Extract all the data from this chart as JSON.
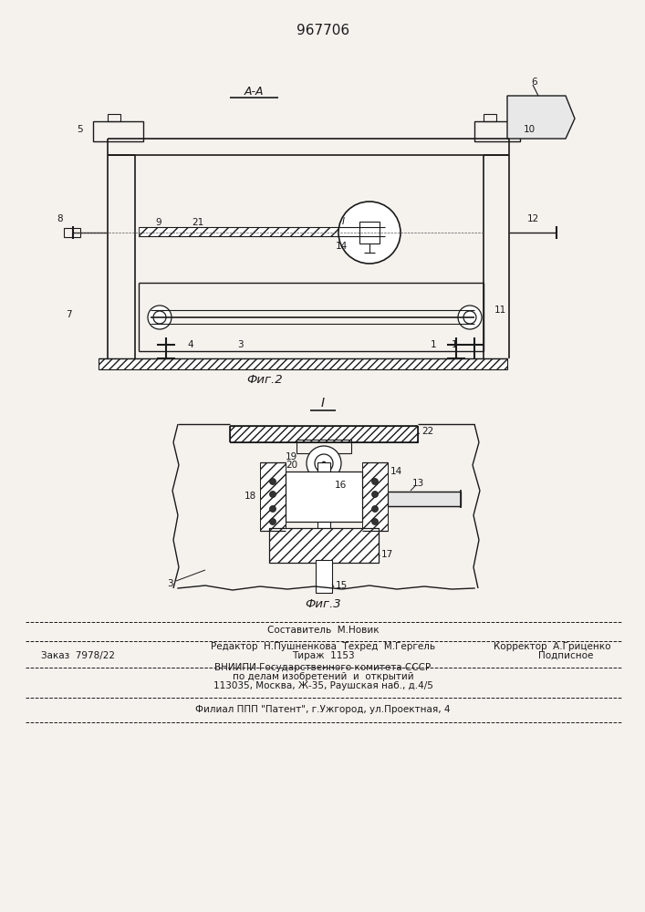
{
  "patent_number": "967706",
  "bg": "#f5f2ee",
  "lc": "#1a1a1a",
  "fig2_label": "Фиг.2",
  "fig3_label": "Фиг.3",
  "section_label": "А-А",
  "view_label": "I",
  "footer": {
    "line1": "Составитель  М.Новик",
    "line2_left": "Редактор  Н.Пушненкова  Техред  М.Гергель",
    "line2_right": "Корректор  А.Гриценко",
    "order": "Заказ  7978/22",
    "tirazh": "Тираж  1153",
    "podp": "Подписное",
    "vniip1": "ВНИИПИ Государственного комитета СССР",
    "vniip2": "по делам изобретений  и  открытий",
    "vniip3": "113035, Москва, Ж-35, Раушская наб., д.4/5",
    "filial": "Филиал ППП \"Патент\", г.Ужгород, ул.Проектная, 4"
  }
}
